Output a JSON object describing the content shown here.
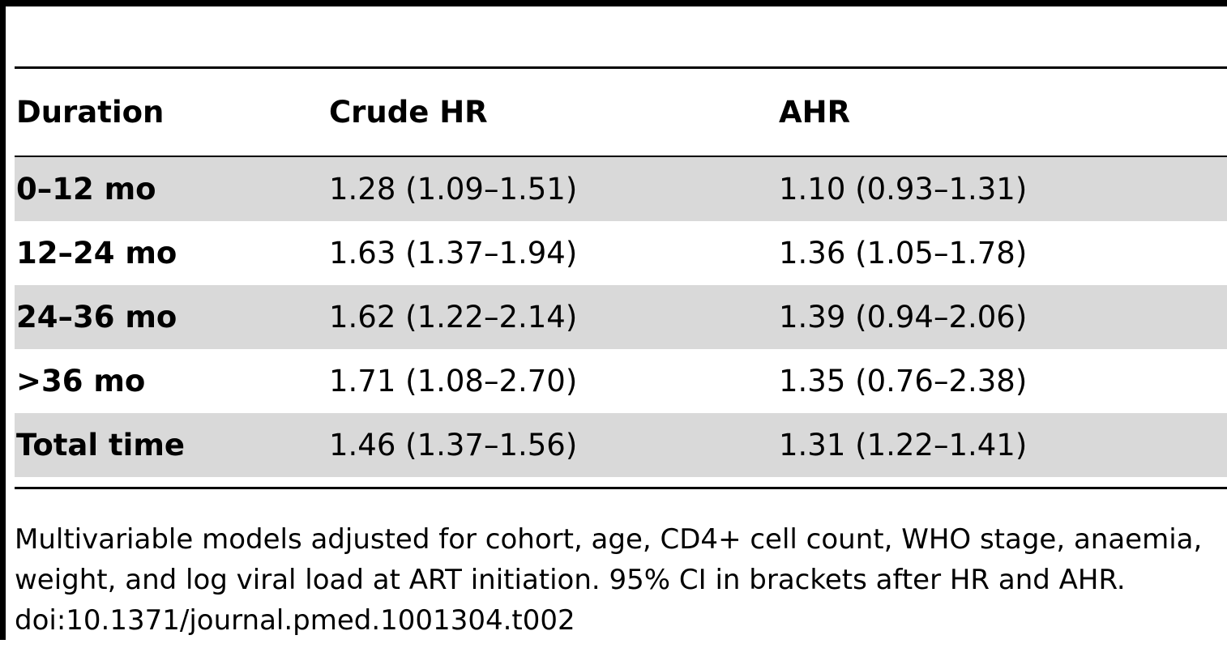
{
  "table": {
    "headers": [
      "Duration",
      "Crude HR",
      "AHR"
    ],
    "rows": [
      {
        "duration": "0–12 mo",
        "crude_hr": "1.28 (1.09–1.51)",
        "ahr": "1.10 (0.93–1.31)"
      },
      {
        "duration": "12–24 mo",
        "crude_hr": "1.63 (1.37–1.94)",
        "ahr": "1.36 (1.05–1.78)"
      },
      {
        "duration": "24–36 mo",
        "crude_hr": "1.62 (1.22–2.14)",
        "ahr": "1.39 (0.94–2.06)"
      },
      {
        "duration": ">36 mo",
        "crude_hr": "1.71 (1.08–2.70)",
        "ahr": "1.35 (0.76–2.38)"
      },
      {
        "duration": "Total time",
        "crude_hr": "1.46 (1.37–1.56)",
        "ahr": "1.31 (1.22–1.41)"
      }
    ]
  },
  "footnote": {
    "line1": "Multivariable models adjusted for cohort, age, CD4+ cell count, WHO stage, anaemia,",
    "line2": "weight, and log viral load at ART initiation. 95% CI in brackets after HR and AHR.",
    "doi": "doi:10.1371/journal.pmed.1001304.t002"
  }
}
